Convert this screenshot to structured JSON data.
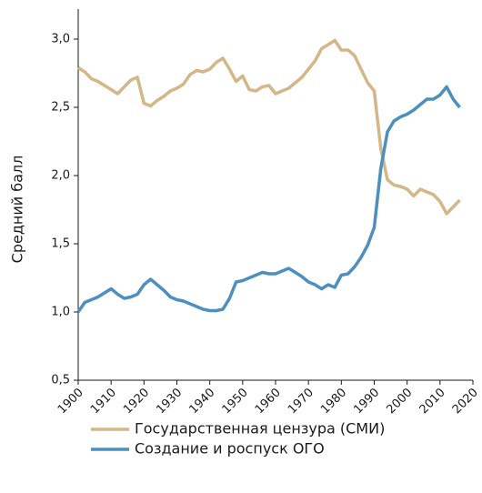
{
  "chart_data": {
    "type": "line",
    "y_label": "Средний балл",
    "x": [
      1900,
      1902,
      1904,
      1906,
      1908,
      1910,
      1912,
      1914,
      1916,
      1918,
      1920,
      1922,
      1924,
      1926,
      1928,
      1930,
      1932,
      1934,
      1936,
      1938,
      1940,
      1942,
      1944,
      1946,
      1948,
      1950,
      1952,
      1954,
      1956,
      1958,
      1960,
      1962,
      1964,
      1966,
      1968,
      1970,
      1972,
      1974,
      1976,
      1978,
      1980,
      1982,
      1984,
      1986,
      1988,
      1990,
      1992,
      1994,
      1996,
      1998,
      2000,
      2002,
      2004,
      2006,
      2008,
      2010,
      2012,
      2014,
      2016
    ],
    "series": [
      {
        "name": "Государственная цензура (СМИ)",
        "color": "#d4b788",
        "values": [
          2.79,
          2.76,
          2.71,
          2.69,
          2.66,
          2.63,
          2.6,
          2.65,
          2.7,
          2.72,
          2.53,
          2.51,
          2.55,
          2.58,
          2.62,
          2.64,
          2.67,
          2.74,
          2.77,
          2.76,
          2.78,
          2.83,
          2.86,
          2.78,
          2.69,
          2.73,
          2.63,
          2.62,
          2.65,
          2.66,
          2.6,
          2.62,
          2.64,
          2.68,
          2.72,
          2.78,
          2.84,
          2.93,
          2.96,
          2.99,
          2.92,
          2.92,
          2.88,
          2.78,
          2.68,
          2.62,
          2.2,
          1.97,
          1.93,
          1.92,
          1.9,
          1.85,
          1.9,
          1.88,
          1.86,
          1.81,
          1.72,
          1.77,
          1.82
        ]
      },
      {
        "name": "Создание и роспуск ОГО",
        "color": "#4d8fbf",
        "values": [
          1.0,
          1.07,
          1.09,
          1.11,
          1.14,
          1.17,
          1.13,
          1.1,
          1.11,
          1.13,
          1.2,
          1.24,
          1.2,
          1.16,
          1.11,
          1.09,
          1.08,
          1.06,
          1.04,
          1.02,
          1.01,
          1.01,
          1.02,
          1.1,
          1.22,
          1.23,
          1.25,
          1.27,
          1.29,
          1.28,
          1.28,
          1.3,
          1.32,
          1.29,
          1.26,
          1.22,
          1.2,
          1.17,
          1.2,
          1.18,
          1.27,
          1.28,
          1.33,
          1.4,
          1.49,
          1.62,
          2.05,
          2.32,
          2.4,
          2.43,
          2.45,
          2.48,
          2.52,
          2.56,
          2.56,
          2.59,
          2.65,
          2.56,
          2.5
        ]
      }
    ],
    "xlim": [
      1900,
      2020
    ],
    "xticks": [
      1900,
      1910,
      1920,
      1930,
      1940,
      1950,
      1960,
      1970,
      1980,
      1990,
      2000,
      2010,
      2020
    ],
    "ylim": [
      0.5,
      3.22
    ],
    "yticks": [
      {
        "value": 0.5,
        "label": "0,5"
      },
      {
        "value": 1.0,
        "label": "1,0"
      },
      {
        "value": 1.5,
        "label": "1,5"
      },
      {
        "value": 2.0,
        "label": "2,0"
      },
      {
        "value": 2.5,
        "label": "2,5"
      },
      {
        "value": 3.0,
        "label": "3,0"
      }
    ],
    "grid": false,
    "legend": "bottom"
  }
}
